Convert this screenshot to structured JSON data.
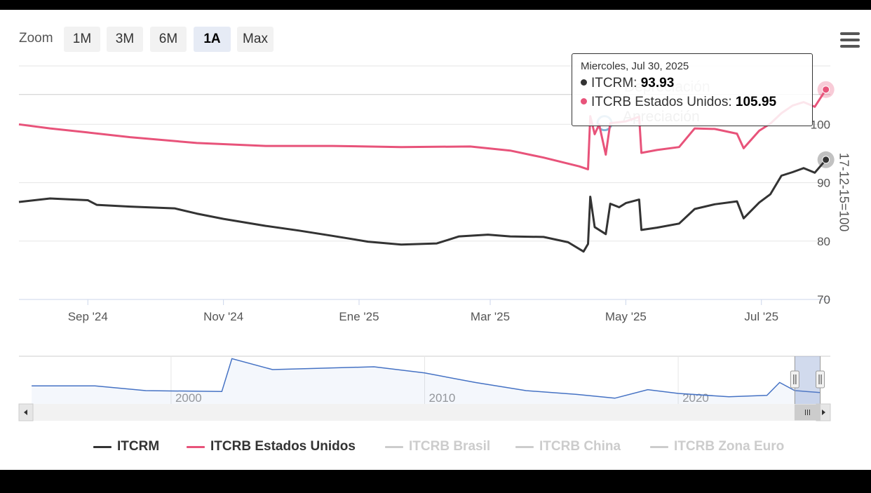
{
  "zoom": {
    "label": "Zoom",
    "buttons": [
      "1M",
      "3M",
      "6M",
      "1A",
      "Max"
    ],
    "active": "1A"
  },
  "menu_icon": "hamburger-menu-icon",
  "tooltip": {
    "date": "Miercoles, Jul 30, 2025",
    "rows": [
      {
        "name": "ITCRM",
        "value": "93.93",
        "color": "#333333"
      },
      {
        "name": "ITCRB Estados Unidos",
        "value": "105.95",
        "color": "#e8537a"
      }
    ]
  },
  "plot_band_labels": [
    "Depreciación",
    "Apreciación"
  ],
  "legend": [
    {
      "name": "ITCRM",
      "color": "#333333",
      "visible": true
    },
    {
      "name": "ITCRB Estados Unidos",
      "color": "#e8537a",
      "visible": true
    },
    {
      "name": "ITCRB Brasil",
      "color": "#cccccc",
      "visible": false
    },
    {
      "name": "ITCRB China",
      "color": "#cccccc",
      "visible": false
    },
    {
      "name": "ITCRB Zona Euro",
      "color": "#cccccc",
      "visible": false
    }
  ],
  "chart_data": {
    "type": "line",
    "xlabel": "",
    "ylabel": "17-12-15=100",
    "x_ticks": [
      "Sep '24",
      "Nov '24",
      "Ene '25",
      "Mar '25",
      "May '25",
      "Jul '25"
    ],
    "y_ticks": [
      70,
      80,
      90,
      100
    ],
    "ylim": [
      70,
      110
    ],
    "xlim": [
      "2024-08-01",
      "2025-08-01"
    ],
    "grid": true,
    "legend_position": "bottom",
    "series": [
      {
        "name": "ITCRM",
        "color": "#333333",
        "points": [
          [
            "2024-08-01",
            86.7
          ],
          [
            "2024-08-15",
            87.3
          ],
          [
            "2024-09-01",
            87.0
          ],
          [
            "2024-09-05",
            86.2
          ],
          [
            "2024-09-20",
            85.9
          ],
          [
            "2024-10-10",
            85.6
          ],
          [
            "2024-10-20",
            84.7
          ],
          [
            "2024-11-01",
            83.8
          ],
          [
            "2024-11-20",
            82.6
          ],
          [
            "2024-12-05",
            81.8
          ],
          [
            "2024-12-20",
            80.9
          ],
          [
            "2025-01-05",
            79.9
          ],
          [
            "2025-01-20",
            79.4
          ],
          [
            "2025-02-05",
            79.6
          ],
          [
            "2025-02-15",
            80.8
          ],
          [
            "2025-02-28",
            81.1
          ],
          [
            "2025-03-10",
            80.8
          ],
          [
            "2025-03-25",
            80.7
          ],
          [
            "2025-04-05",
            79.8
          ],
          [
            "2025-04-12",
            78.2
          ],
          [
            "2025-04-14",
            79.5
          ],
          [
            "2025-04-15",
            87.6
          ],
          [
            "2025-04-17",
            82.4
          ],
          [
            "2025-04-22",
            81.2
          ],
          [
            "2025-04-24",
            86.4
          ],
          [
            "2025-04-28",
            85.8
          ],
          [
            "2025-05-01",
            86.5
          ],
          [
            "2025-05-07",
            87.1
          ],
          [
            "2025-05-08",
            81.9
          ],
          [
            "2025-05-15",
            82.3
          ],
          [
            "2025-05-25",
            83.0
          ],
          [
            "2025-06-01",
            85.5
          ],
          [
            "2025-06-10",
            86.3
          ],
          [
            "2025-06-20",
            86.8
          ],
          [
            "2025-06-23",
            83.9
          ],
          [
            "2025-06-30",
            86.6
          ],
          [
            "2025-07-05",
            88.0
          ],
          [
            "2025-07-10",
            91.2
          ],
          [
            "2025-07-15",
            91.8
          ],
          [
            "2025-07-20",
            92.5
          ],
          [
            "2025-07-25",
            91.7
          ],
          [
            "2025-07-30",
            93.93
          ]
        ]
      },
      {
        "name": "ITCRB Estados Unidos",
        "color": "#e8537a",
        "points": [
          [
            "2024-08-01",
            100.0
          ],
          [
            "2024-08-15",
            99.3
          ],
          [
            "2024-09-01",
            98.6
          ],
          [
            "2024-09-20",
            97.8
          ],
          [
            "2024-10-20",
            96.8
          ],
          [
            "2024-11-20",
            96.3
          ],
          [
            "2024-12-20",
            96.3
          ],
          [
            "2025-01-20",
            96.1
          ],
          [
            "2025-02-20",
            96.2
          ],
          [
            "2025-03-10",
            95.5
          ],
          [
            "2025-03-25",
            94.3
          ],
          [
            "2025-04-10",
            92.8
          ],
          [
            "2025-04-14",
            92.3
          ],
          [
            "2025-04-15",
            101.4
          ],
          [
            "2025-04-17",
            98.3
          ],
          [
            "2025-04-19",
            100.0
          ],
          [
            "2025-04-22",
            94.8
          ],
          [
            "2025-04-24",
            100.2
          ],
          [
            "2025-05-01",
            100.5
          ],
          [
            "2025-05-07",
            101.3
          ],
          [
            "2025-05-08",
            95.1
          ],
          [
            "2025-05-15",
            95.6
          ],
          [
            "2025-05-25",
            96.1
          ],
          [
            "2025-06-01",
            99.3
          ],
          [
            "2025-06-10",
            99.2
          ],
          [
            "2025-06-20",
            98.4
          ],
          [
            "2025-06-23",
            95.9
          ],
          [
            "2025-06-30",
            98.9
          ],
          [
            "2025-07-05",
            100.1
          ],
          [
            "2025-07-10",
            101.9
          ],
          [
            "2025-07-15",
            103.2
          ],
          [
            "2025-07-20",
            103.8
          ],
          [
            "2025-07-25",
            103.0
          ],
          [
            "2025-07-30",
            105.95
          ]
        ]
      }
    ]
  },
  "navigator": {
    "x_labels": [
      "2000",
      "2010",
      "2020"
    ],
    "xlim": [
      1994,
      2026
    ],
    "selection": [
      2024.6,
      2025.6
    ],
    "series": [
      [
        1994.5,
        0.62
      ],
      [
        1997,
        0.62
      ],
      [
        1999,
        0.72
      ],
      [
        2002,
        0.74
      ],
      [
        2002.4,
        0.05
      ],
      [
        2004,
        0.28
      ],
      [
        2006,
        0.25
      ],
      [
        2008,
        0.22
      ],
      [
        2010,
        0.35
      ],
      [
        2012,
        0.55
      ],
      [
        2014,
        0.72
      ],
      [
        2016,
        0.8
      ],
      [
        2017.5,
        0.88
      ],
      [
        2018.8,
        0.7
      ],
      [
        2020,
        0.78
      ],
      [
        2022,
        0.85
      ],
      [
        2023.5,
        0.82
      ],
      [
        2024.0,
        0.55
      ],
      [
        2024.6,
        0.72
      ],
      [
        2025.6,
        0.76
      ]
    ],
    "scroll_icon": "grip-lines-icon"
  }
}
